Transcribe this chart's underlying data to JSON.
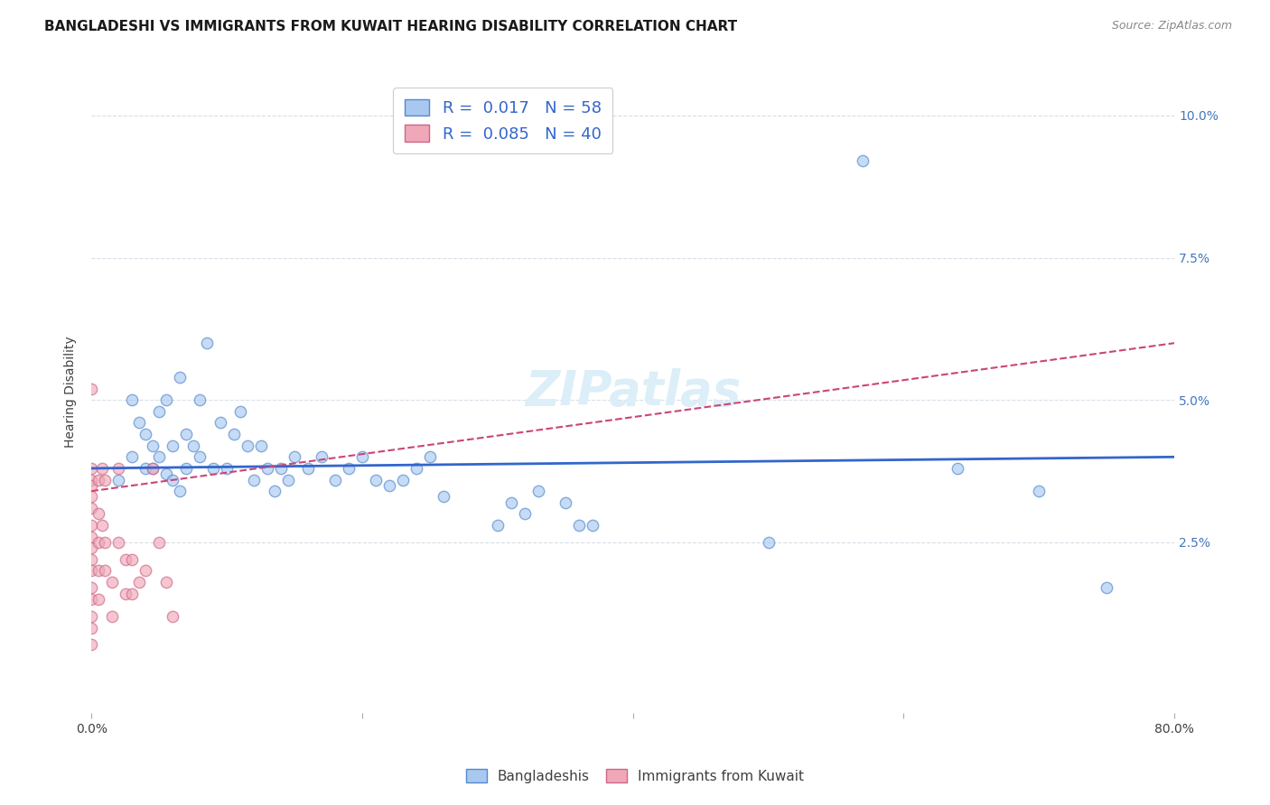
{
  "title": "BANGLADESHI VS IMMIGRANTS FROM KUWAIT HEARING DISABILITY CORRELATION CHART",
  "source": "Source: ZipAtlas.com",
  "ylabel": "Hearing Disability",
  "watermark": "ZIPatlas",
  "legend_blue_R": "0.017",
  "legend_blue_N": "58",
  "legend_pink_R": "0.085",
  "legend_pink_N": "40",
  "xlim": [
    0.0,
    0.8
  ],
  "ylim": [
    -0.005,
    0.108
  ],
  "blue_scatter_x": [
    0.02,
    0.03,
    0.03,
    0.035,
    0.04,
    0.04,
    0.045,
    0.045,
    0.05,
    0.05,
    0.055,
    0.055,
    0.06,
    0.06,
    0.065,
    0.065,
    0.07,
    0.07,
    0.075,
    0.08,
    0.08,
    0.085,
    0.09,
    0.095,
    0.1,
    0.105,
    0.11,
    0.115,
    0.12,
    0.125,
    0.13,
    0.135,
    0.14,
    0.145,
    0.15,
    0.16,
    0.17,
    0.18,
    0.19,
    0.2,
    0.21,
    0.22,
    0.23,
    0.24,
    0.25,
    0.26,
    0.3,
    0.31,
    0.32,
    0.33,
    0.35,
    0.36,
    0.37,
    0.5,
    0.57,
    0.64,
    0.7,
    0.75
  ],
  "blue_scatter_y": [
    0.036,
    0.04,
    0.05,
    0.046,
    0.038,
    0.044,
    0.038,
    0.042,
    0.04,
    0.048,
    0.037,
    0.05,
    0.036,
    0.042,
    0.054,
    0.034,
    0.038,
    0.044,
    0.042,
    0.04,
    0.05,
    0.06,
    0.038,
    0.046,
    0.038,
    0.044,
    0.048,
    0.042,
    0.036,
    0.042,
    0.038,
    0.034,
    0.038,
    0.036,
    0.04,
    0.038,
    0.04,
    0.036,
    0.038,
    0.04,
    0.036,
    0.035,
    0.036,
    0.038,
    0.04,
    0.033,
    0.028,
    0.032,
    0.03,
    0.034,
    0.032,
    0.028,
    0.028,
    0.025,
    0.092,
    0.038,
    0.034,
    0.017
  ],
  "pink_scatter_x": [
    0.0,
    0.0,
    0.0,
    0.0,
    0.0,
    0.0,
    0.0,
    0.0,
    0.0,
    0.0,
    0.0,
    0.0,
    0.0,
    0.0,
    0.0,
    0.005,
    0.005,
    0.005,
    0.005,
    0.005,
    0.008,
    0.008,
    0.01,
    0.01,
    0.01,
    0.015,
    0.015,
    0.02,
    0.02,
    0.025,
    0.025,
    0.03,
    0.03,
    0.035,
    0.04,
    0.045,
    0.05,
    0.055,
    0.06,
    0.0
  ],
  "pink_scatter_y": [
    0.038,
    0.036,
    0.035,
    0.033,
    0.031,
    0.028,
    0.026,
    0.024,
    0.022,
    0.02,
    0.017,
    0.015,
    0.012,
    0.01,
    0.007,
    0.036,
    0.03,
    0.025,
    0.02,
    0.015,
    0.038,
    0.028,
    0.036,
    0.025,
    0.02,
    0.018,
    0.012,
    0.038,
    0.025,
    0.022,
    0.016,
    0.022,
    0.016,
    0.018,
    0.02,
    0.038,
    0.025,
    0.018,
    0.012,
    0.052
  ],
  "blue_trend_x": [
    0.0,
    0.8
  ],
  "blue_trend_y": [
    0.038,
    0.04
  ],
  "pink_trend_x": [
    0.0,
    0.8
  ],
  "pink_trend_y": [
    0.034,
    0.06
  ],
  "blue_color": "#a8c8f0",
  "pink_color": "#f0a8b8",
  "trend_blue_color": "#3366cc",
  "trend_pink_color": "#cc4477",
  "grid_color": "#d8dfe8",
  "background_color": "#ffffff",
  "title_fontsize": 11,
  "axis_label_fontsize": 10,
  "tick_fontsize": 10,
  "legend_fontsize": 13,
  "source_fontsize": 9,
  "watermark_fontsize": 38,
  "watermark_color": "#dceef8",
  "scatter_size": 80,
  "scatter_alpha": 0.65,
  "scatter_linewidth": 1.0,
  "scatter_edgecolor_blue": "#5588cc",
  "scatter_edgecolor_pink": "#cc6688"
}
